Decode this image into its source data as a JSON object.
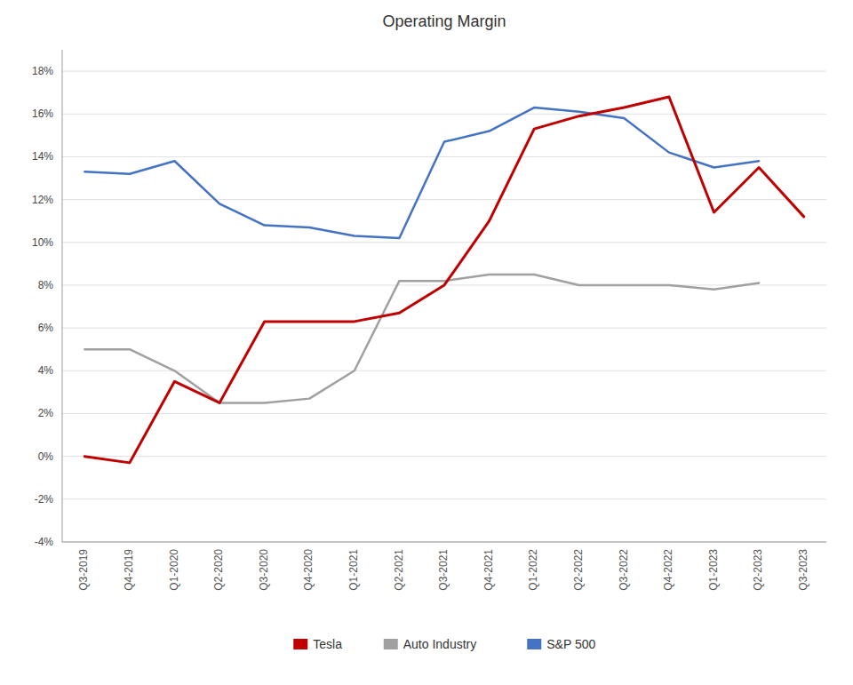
{
  "chart_data": {
    "type": "line",
    "title": "Operating Margin",
    "categories": [
      "Q3-2019",
      "Q4-2019",
      "Q1-2020",
      "Q2-2020",
      "Q3-2020",
      "Q4-2020",
      "Q1-2021",
      "Q2-2021",
      "Q3-2021",
      "Q4-2021",
      "Q1-2022",
      "Q2-2022",
      "Q3-2022",
      "Q4-2022",
      "Q1-2023",
      "Q2-2023",
      "Q3-2023"
    ],
    "series": [
      {
        "name": "Tesla",
        "color": "#c00000",
        "values": [
          0.0,
          -0.3,
          3.5,
          2.5,
          6.3,
          6.3,
          6.3,
          6.7,
          8.0,
          11.0,
          15.3,
          15.9,
          16.3,
          16.8,
          11.4,
          13.5,
          11.2
        ]
      },
      {
        "name": "Auto Industry",
        "color": "#a0a0a0",
        "values": [
          5.0,
          5.0,
          4.0,
          2.5,
          2.5,
          2.7,
          4.0,
          8.2,
          8.2,
          8.5,
          8.5,
          8.0,
          8.0,
          8.0,
          7.8,
          8.1,
          null
        ]
      },
      {
        "name": "S&P 500",
        "color": "#4472c4",
        "values": [
          13.3,
          13.2,
          13.8,
          11.8,
          10.8,
          10.7,
          10.3,
          10.2,
          14.7,
          15.2,
          16.3,
          16.1,
          15.8,
          14.2,
          13.5,
          13.8,
          null
        ]
      }
    ],
    "ylim": [
      -4,
      19
    ],
    "yticks": [
      {
        "value": -4,
        "label": "-4%"
      },
      {
        "value": -2,
        "label": "-2%"
      },
      {
        "value": 0,
        "label": "0%"
      },
      {
        "value": 2,
        "label": "2%"
      },
      {
        "value": 4,
        "label": "4%"
      },
      {
        "value": 6,
        "label": "6%"
      },
      {
        "value": 8,
        "label": "8%"
      },
      {
        "value": 10,
        "label": "10%"
      },
      {
        "value": 12,
        "label": "12%"
      },
      {
        "value": 14,
        "label": "14%"
      },
      {
        "value": 16,
        "label": "16%"
      },
      {
        "value": 18,
        "label": "18%"
      }
    ],
    "grid": true,
    "legend": "bottom"
  }
}
